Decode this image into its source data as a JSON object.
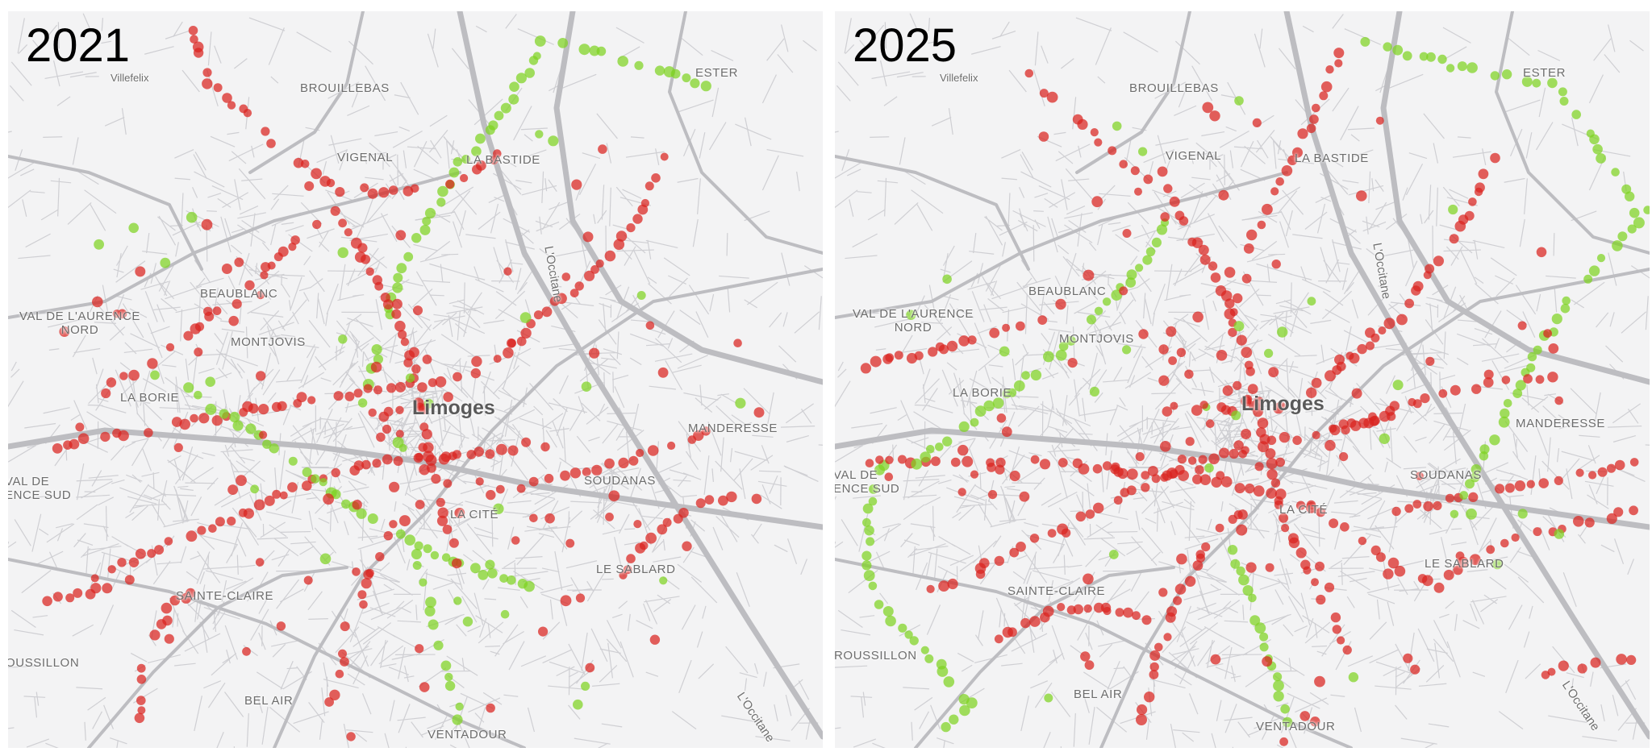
{
  "panels": [
    {
      "id": "left",
      "year": "2021",
      "labels": {
        "villefelix": "Villefelix",
        "brouillebas": "BROUILLEBAS",
        "ester": "ESTER",
        "vigenal": "VIGENAL",
        "la_bastide": "LA BASTIDE",
        "beaublanc": "BEAUBLANC",
        "val_aurence_nord": "VAL DE L'AURENCE\nNORD",
        "montjovis": "MONTJOVIS",
        "la_borie": "LA BORIE",
        "limoges": "Limoges",
        "manderesse": "MANDERESSE",
        "val_sud": "VAL DE\nENCE SUD",
        "soudanas": "SOUDANAS",
        "la_cite": "LA CITÉ",
        "le_sablard": "LE SABLARD",
        "sainte_claire": "SAINTE-CLAIRE",
        "roussillon": "OUSSILLON",
        "bel_air": "BEL AIR",
        "ventadour": "VENTADOUR",
        "loccitane_1": "L'Occitane",
        "loccitane_2": "L'Occitane"
      }
    },
    {
      "id": "right",
      "year": "2025",
      "labels": {
        "villefelix": "Villefelix",
        "brouillebas": "BROUILLEBAS",
        "ester": "ESTER",
        "vigenal": "VIGENAL",
        "la_bastide": "LA BASTIDE",
        "beaublanc": "BEAUBLANC",
        "val_aurence_nord": "VAL DE L'AURENCE\nNORD",
        "montjovis": "MONTJOVIS",
        "la_borie": "LA BORIE",
        "limoges": "Limoges",
        "manderesse": "MANDERESSE",
        "val_sud": "VAL DE\nENCE SUD",
        "soudanas": "SOUDANAS",
        "la_cite": "LA CITÉ",
        "le_sablard": "LE SABLARD",
        "sainte_claire": "SAINTE-CLAIRE",
        "roussillon": "ROUSSILLON",
        "bel_air": "BEL AIR",
        "ventadour": "VENTADOUR",
        "loccitane_1": "L'Occitane",
        "loccitane_2": "L'Occitane"
      }
    }
  ],
  "colors": {
    "map_background": "#f3f3f4",
    "minor_road": "#cfcfd3",
    "major_road": "#bdbdc1",
    "point_red": "#d9231e",
    "point_green": "#7ed321"
  }
}
